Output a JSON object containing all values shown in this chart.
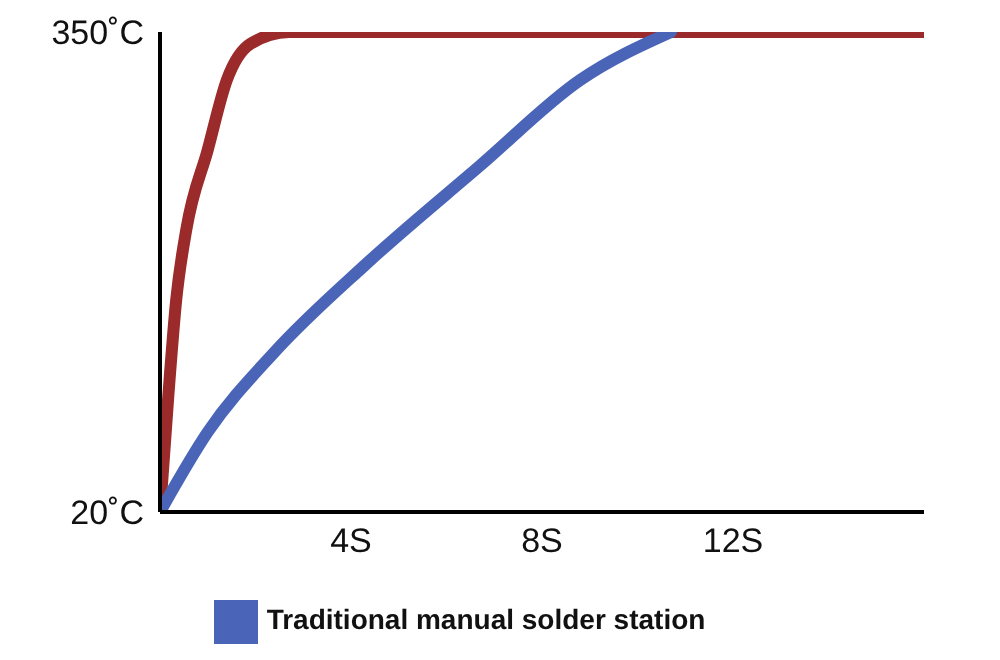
{
  "chart_data": {
    "type": "line",
    "xlim": [
      0,
      16
    ],
    "ylim": [
      20,
      350
    ],
    "xticks": [
      {
        "value": 4,
        "label": "4S"
      },
      {
        "value": 8,
        "label": "8S"
      },
      {
        "value": 12,
        "label": "12S"
      }
    ],
    "yticks": [
      {
        "value": 20,
        "label": "20˚C"
      },
      {
        "value": 350,
        "label": "350˚C"
      }
    ],
    "grid": false,
    "legend": "bottom",
    "marker": "none",
    "line_style": "solid",
    "series": [
      {
        "color": "#9b2a2a",
        "x": [
          0,
          0.17,
          0.34,
          0.55,
          1.0,
          1.4,
          1.9,
          2.7,
          16
        ],
        "values": [
          20,
          98,
          166,
          214,
          269,
          317,
          342,
          350,
          350
        ]
      },
      {
        "name": "Traditional manual solder station",
        "color": "#4a64b8",
        "x": [
          0,
          1.0,
          2.4,
          4.3,
          6.7,
          8.8,
          10.7
        ],
        "values": [
          20,
          75,
          130,
          190,
          258,
          317,
          350
        ]
      }
    ]
  }
}
